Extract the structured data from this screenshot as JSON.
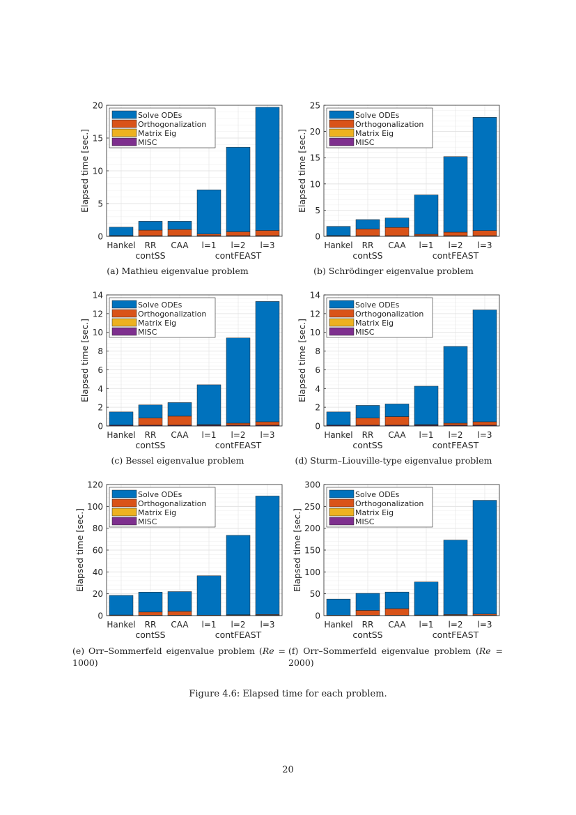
{
  "colors": {
    "Solve ODEs": "#0072BD",
    "Orthogonalization": "#D95319",
    "Matrix Eig": "#EDB120",
    "MISC": "#7E2F8E"
  },
  "chart_data": [
    {
      "type": "bar",
      "stacked": true,
      "caption": "(a) Mathieu eigenvalue problem",
      "ylabel": "Elapsed time [sec.]",
      "ylim": [
        0,
        20
      ],
      "yticks": [
        0,
        5,
        10,
        15,
        20
      ],
      "grid": true,
      "minor_grid": true,
      "legend": "top-left",
      "categories": [
        "Hankel",
        "RR",
        "CAA",
        "l=1",
        "l=2",
        "l=3"
      ],
      "groups": [
        {
          "label": "contSS",
          "categories": [
            "Hankel",
            "RR",
            "CAA"
          ]
        },
        {
          "label": "contFEAST",
          "categories": [
            "l=1",
            "l=2",
            "l=3"
          ]
        }
      ],
      "series": [
        {
          "name": "Solve ODEs",
          "values": [
            1.28,
            1.35,
            1.25,
            6.75,
            12.9,
            18.8
          ]
        },
        {
          "name": "Orthogonalization",
          "values": [
            0.01,
            0.84,
            0.94,
            0.24,
            0.59,
            0.79
          ]
        },
        {
          "name": "Matrix Eig",
          "values": [
            0.01,
            0.01,
            0.01,
            0.01,
            0.01,
            0.01
          ]
        },
        {
          "name": "MISC",
          "values": [
            0.1,
            0.1,
            0.1,
            0.1,
            0.1,
            0.1
          ]
        }
      ]
    },
    {
      "type": "bar",
      "stacked": true,
      "caption": "(b) Schrödinger eigenvalue problem",
      "ylabel": "Elapsed time [sec.]",
      "ylim": [
        0,
        25
      ],
      "yticks": [
        0,
        5,
        10,
        15,
        20,
        25
      ],
      "grid": true,
      "minor_grid": true,
      "legend": "top-left",
      "categories": [
        "Hankel",
        "RR",
        "CAA",
        "l=1",
        "l=2",
        "l=3"
      ],
      "groups": [
        {
          "label": "contSS",
          "categories": [
            "Hankel",
            "RR",
            "CAA"
          ]
        },
        {
          "label": "contFEAST",
          "categories": [
            "l=1",
            "l=2",
            "l=3"
          ]
        }
      ],
      "series": [
        {
          "name": "Solve ODEs",
          "values": [
            1.75,
            1.8,
            1.8,
            7.5,
            14.4,
            21.6
          ]
        },
        {
          "name": "Orthogonalization",
          "values": [
            0.02,
            1.27,
            1.57,
            0.27,
            0.67,
            0.97
          ]
        },
        {
          "name": "Matrix Eig",
          "values": [
            0.01,
            0.01,
            0.01,
            0.01,
            0.01,
            0.01
          ]
        },
        {
          "name": "MISC",
          "values": [
            0.12,
            0.12,
            0.12,
            0.12,
            0.12,
            0.12
          ]
        }
      ]
    },
    {
      "type": "bar",
      "stacked": true,
      "caption": "(c) Bessel eigenvalue problem",
      "ylabel": "Elapsed time [sec.]",
      "ylim": [
        0,
        14
      ],
      "yticks": [
        0,
        2,
        4,
        6,
        8,
        10,
        12,
        14
      ],
      "grid": true,
      "minor_grid": true,
      "legend": "top-left",
      "categories": [
        "Hankel",
        "RR",
        "CAA",
        "l=1",
        "l=2",
        "l=3"
      ],
      "groups": [
        {
          "label": "contSS",
          "categories": [
            "Hankel",
            "RR",
            "CAA"
          ]
        },
        {
          "label": "contFEAST",
          "categories": [
            "l=1",
            "l=2",
            "l=3"
          ]
        }
      ],
      "series": [
        {
          "name": "Solve ODEs",
          "values": [
            1.4,
            1.4,
            1.45,
            4.25,
            9.1,
            12.85
          ]
        },
        {
          "name": "Orthogonalization",
          "values": [
            0.01,
            0.76,
            0.96,
            0.06,
            0.21,
            0.36
          ]
        },
        {
          "name": "Matrix Eig",
          "values": [
            0.01,
            0.01,
            0.01,
            0.01,
            0.01,
            0.01
          ]
        },
        {
          "name": "MISC",
          "values": [
            0.08,
            0.08,
            0.08,
            0.08,
            0.08,
            0.08
          ]
        }
      ]
    },
    {
      "type": "bar",
      "stacked": true,
      "caption": "(d) Sturm–Liouville-type eigenvalue problem",
      "ylabel": "Elapsed time [sec.]",
      "ylim": [
        0,
        14
      ],
      "yticks": [
        0,
        2,
        4,
        6,
        8,
        10,
        12,
        14
      ],
      "grid": true,
      "minor_grid": true,
      "legend": "top-left",
      "categories": [
        "Hankel",
        "RR",
        "CAA",
        "l=1",
        "l=2",
        "l=3"
      ],
      "groups": [
        {
          "label": "contSS",
          "categories": [
            "Hankel",
            "RR",
            "CAA"
          ]
        },
        {
          "label": "contFEAST",
          "categories": [
            "l=1",
            "l=2",
            "l=3"
          ]
        }
      ],
      "series": [
        {
          "name": "Solve ODEs",
          "values": [
            1.4,
            1.35,
            1.35,
            4.1,
            8.2,
            11.95
          ]
        },
        {
          "name": "Orthogonalization",
          "values": [
            0.01,
            0.76,
            0.91,
            0.06,
            0.21,
            0.36
          ]
        },
        {
          "name": "Matrix Eig",
          "values": [
            0.01,
            0.01,
            0.01,
            0.01,
            0.01,
            0.01
          ]
        },
        {
          "name": "MISC",
          "values": [
            0.08,
            0.08,
            0.08,
            0.08,
            0.08,
            0.08
          ]
        }
      ]
    },
    {
      "type": "bar",
      "stacked": true,
      "caption_prefix": "(e) Orr–Sommerfeld eigenvalue problem (",
      "caption_italic": "Re",
      "caption_suffix": " = 1000)",
      "ylabel": "Elapsed time [sec.]",
      "ylim": [
        0,
        120
      ],
      "yticks": [
        0,
        20,
        40,
        60,
        80,
        100,
        120
      ],
      "grid": true,
      "minor_grid": true,
      "legend": "top-left",
      "categories": [
        "Hankel",
        "RR",
        "CAA",
        "l=1",
        "l=2",
        "l=3"
      ],
      "groups": [
        {
          "label": "contSS",
          "categories": [
            "Hankel",
            "RR",
            "CAA"
          ]
        },
        {
          "label": "contFEAST",
          "categories": [
            "l=1",
            "l=2",
            "l=3"
          ]
        }
      ],
      "series": [
        {
          "name": "Solve ODEs",
          "values": [
            17.9,
            18.2,
            18.1,
            36,
            72.7,
            108.5
          ]
        },
        {
          "name": "Orthogonalization",
          "values": [
            0.15,
            2.85,
            3.45,
            0.05,
            0.35,
            0.55
          ]
        },
        {
          "name": "Matrix Eig",
          "values": [
            0.05,
            0.05,
            0.05,
            0.05,
            0.05,
            0.05
          ]
        },
        {
          "name": "MISC",
          "values": [
            0.4,
            0.4,
            0.4,
            0.4,
            0.4,
            0.4
          ]
        }
      ]
    },
    {
      "type": "bar",
      "stacked": true,
      "caption_prefix": "(f) Orr–Sommerfeld eigenvalue problem (",
      "caption_italic": "Re",
      "caption_suffix": " = 2000)",
      "ylabel": "Elapsed time [sec.]",
      "ylim": [
        0,
        300
      ],
      "yticks": [
        0,
        50,
        100,
        150,
        200,
        250,
        300
      ],
      "grid": true,
      "minor_grid": true,
      "legend": "top-left",
      "categories": [
        "Hankel",
        "RR",
        "CAA",
        "l=1",
        "l=2",
        "l=3"
      ],
      "groups": [
        {
          "label": "contSS",
          "categories": [
            "Hankel",
            "RR",
            "CAA"
          ]
        },
        {
          "label": "contFEAST",
          "categories": [
            "l=1",
            "l=2",
            "l=3"
          ]
        }
      ],
      "series": [
        {
          "name": "Solve ODEs",
          "values": [
            37,
            39,
            38,
            75.5,
            170.5,
            260.5
          ]
        },
        {
          "name": "Orthogonalization",
          "values": [
            0.1,
            11.1,
            15.1,
            0.6,
            1.6,
            2.6
          ]
        },
        {
          "name": "Matrix Eig",
          "values": [
            0.1,
            0.1,
            0.1,
            0.1,
            0.1,
            0.1
          ]
        },
        {
          "name": "MISC",
          "values": [
            0.8,
            0.8,
            0.8,
            0.8,
            0.8,
            0.8
          ]
        }
      ]
    }
  ],
  "figure_caption": "Figure 4.6: Elapsed time for each problem.",
  "page_number": "20"
}
